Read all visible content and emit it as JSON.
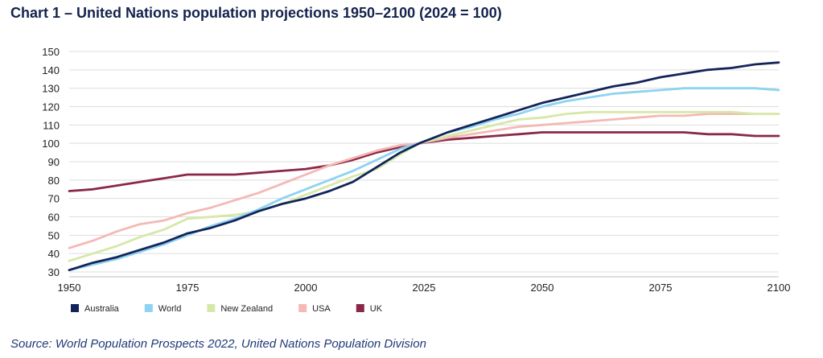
{
  "title": "Chart 1 – United Nations population projections 1950–2100 (2024 = 100)",
  "source": "Source: World Population Prospects 2022, United Nations Population Division",
  "chart_data": {
    "type": "line",
    "title": "Chart 1 – United Nations population projections 1950–2100 (2024 = 100)",
    "xlabel": "",
    "ylabel": "",
    "xlim": [
      1950,
      2100
    ],
    "ylim": [
      30,
      150
    ],
    "xticks": [
      1950,
      1975,
      2000,
      2025,
      2050,
      2075,
      2100
    ],
    "yticks": [
      30,
      40,
      50,
      60,
      70,
      80,
      90,
      100,
      110,
      120,
      130,
      140,
      150
    ],
    "grid": "horizontal",
    "legend_position": "bottom-left",
    "series": [
      {
        "name": "Australia",
        "color": "#13245a",
        "x": [
          1950,
          1955,
          1960,
          1965,
          1970,
          1975,
          1980,
          1985,
          1990,
          1995,
          2000,
          2005,
          2010,
          2015,
          2020,
          2024,
          2030,
          2035,
          2040,
          2045,
          2050,
          2055,
          2060,
          2065,
          2070,
          2075,
          2080,
          2085,
          2090,
          2095,
          2100
        ],
        "values": [
          31,
          35,
          38,
          42,
          46,
          51,
          54,
          58,
          63,
          67,
          70,
          74,
          79,
          87,
          95,
          100,
          106,
          110,
          114,
          118,
          122,
          125,
          128,
          131,
          133,
          136,
          138,
          140,
          141,
          143,
          144
        ]
      },
      {
        "name": "World",
        "color": "#8ed3f0",
        "x": [
          1950,
          1955,
          1960,
          1965,
          1970,
          1975,
          1980,
          1985,
          1990,
          1995,
          2000,
          2005,
          2010,
          2015,
          2020,
          2024,
          2030,
          2035,
          2040,
          2045,
          2050,
          2055,
          2060,
          2065,
          2070,
          2075,
          2080,
          2085,
          2090,
          2095,
          2100
        ],
        "values": [
          31,
          34,
          37,
          41,
          45,
          50,
          55,
          59,
          64,
          70,
          75,
          80,
          85,
          91,
          97,
          100,
          106,
          109,
          113,
          116,
          120,
          123,
          125,
          127,
          128,
          129,
          130,
          130,
          130,
          130,
          129
        ]
      },
      {
        "name": "New Zealand",
        "color": "#d6e8a8",
        "x": [
          1950,
          1955,
          1960,
          1965,
          1970,
          1975,
          1980,
          1985,
          1990,
          1995,
          2000,
          2005,
          2010,
          2015,
          2020,
          2024,
          2030,
          2035,
          2040,
          2045,
          2050,
          2055,
          2060,
          2065,
          2070,
          2075,
          2080,
          2085,
          2090,
          2095,
          2100
        ],
        "values": [
          36,
          40,
          44,
          49,
          53,
          59,
          60,
          61,
          63,
          67,
          72,
          77,
          82,
          86,
          94,
          100,
          104,
          107,
          110,
          113,
          114,
          116,
          117,
          117,
          117,
          117,
          117,
          117,
          117,
          116,
          116
        ]
      },
      {
        "name": "USA",
        "color": "#f4b9b4",
        "x": [
          1950,
          1955,
          1960,
          1965,
          1970,
          1975,
          1980,
          1985,
          1990,
          1995,
          2000,
          2005,
          2010,
          2015,
          2020,
          2024,
          2030,
          2035,
          2040,
          2045,
          2050,
          2055,
          2060,
          2065,
          2070,
          2075,
          2080,
          2085,
          2090,
          2095,
          2100
        ],
        "values": [
          43,
          47,
          52,
          56,
          58,
          62,
          65,
          69,
          73,
          78,
          83,
          88,
          92,
          96,
          99,
          100,
          103,
          105,
          107,
          109,
          110,
          111,
          112,
          113,
          114,
          115,
          115,
          116,
          116,
          116,
          116
        ]
      },
      {
        "name": "UK",
        "color": "#8a2848",
        "x": [
          1950,
          1955,
          1960,
          1965,
          1970,
          1975,
          1980,
          1985,
          1990,
          1995,
          2000,
          2005,
          2010,
          2015,
          2020,
          2024,
          2030,
          2035,
          2040,
          2045,
          2050,
          2055,
          2060,
          2065,
          2070,
          2075,
          2080,
          2085,
          2090,
          2095,
          2100
        ],
        "values": [
          74,
          75,
          77,
          79,
          81,
          83,
          83,
          83,
          84,
          85,
          86,
          88,
          91,
          95,
          98,
          100,
          102,
          103,
          104,
          105,
          106,
          106,
          106,
          106,
          106,
          106,
          106,
          105,
          105,
          104,
          104
        ]
      }
    ]
  }
}
